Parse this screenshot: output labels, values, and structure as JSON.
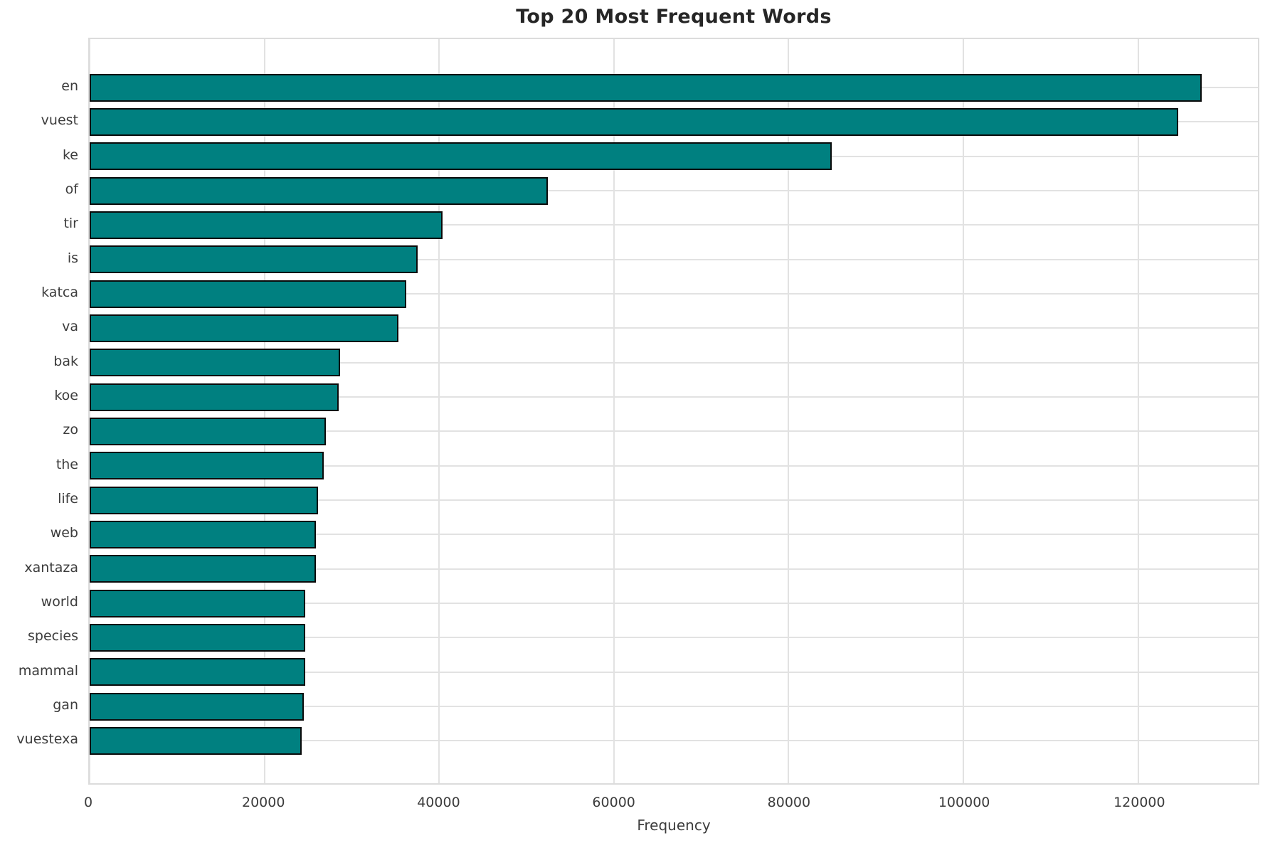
{
  "chart_data": {
    "type": "bar",
    "orientation": "horizontal",
    "title": "Top 20 Most Frequent Words",
    "xlabel": "Frequency",
    "ylabel": "",
    "categories": [
      "en",
      "vuest",
      "ke",
      "of",
      "tir",
      "is",
      "katca",
      "va",
      "bak",
      "koe",
      "zo",
      "the",
      "life",
      "web",
      "xantaza",
      "world",
      "species",
      "mammal",
      "gan",
      "vuestexa"
    ],
    "values": [
      127300,
      124600,
      84900,
      52400,
      40400,
      37500,
      36200,
      35300,
      28700,
      28500,
      27000,
      26800,
      26100,
      25900,
      25900,
      24700,
      24700,
      24700,
      24500,
      24300
    ],
    "xticks": [
      0,
      20000,
      40000,
      60000,
      80000,
      100000,
      120000
    ],
    "xtick_labels": [
      "0",
      "20000",
      "40000",
      "60000",
      "80000",
      "100000",
      "120000"
    ],
    "xlim": [
      0,
      133700
    ],
    "grid": true,
    "legend": "none",
    "bar_color": "#008080",
    "bar_edge_color": "#0a0a0a",
    "grid_color": "#e2e2e2",
    "background_color": "#ffffff"
  }
}
